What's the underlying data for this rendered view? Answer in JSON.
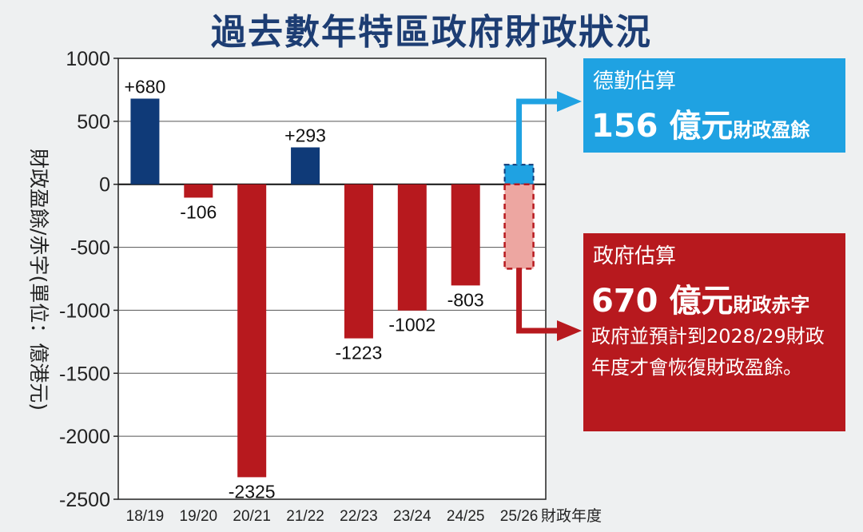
{
  "title": "過去數年特區政府財政狀況",
  "chart_data": {
    "type": "bar",
    "title": "過去數年特區政府財政狀況",
    "ylabel": "財政盈餘/赤字(單位：億港元)",
    "xlabel": "財政年度",
    "ylim": [
      -2500,
      1000
    ],
    "yticks": [
      1000,
      500,
      0,
      -500,
      -1000,
      -1500,
      -2000,
      -2500
    ],
    "categories": [
      "18/19",
      "19/20",
      "20/21",
      "21/22",
      "22/23",
      "23/24",
      "24/25",
      "25/26"
    ],
    "values": [
      680,
      -106,
      -2325,
      293,
      -1223,
      -1002,
      -803,
      null
    ],
    "data_labels": [
      "+680",
      "-106",
      "-2325",
      "+293",
      "-1223",
      "-1002",
      "-803",
      ""
    ],
    "estimates_2526": {
      "deloitte": 156,
      "government": -670
    },
    "grid": true,
    "colors": {
      "surplus": "#0f3a78",
      "deficit": "#b7191e",
      "deloitte": "#1fa2e2",
      "government_estimate": "#eda6a1"
    }
  },
  "callouts": {
    "deloitte": {
      "heading": "德勤估算",
      "amount": "156 億元",
      "suffix": "財政盈餘"
    },
    "government": {
      "heading": "政府估算",
      "amount": "670 億元",
      "suffix": "財政赤字",
      "note": "政府並預計到2028/29財政年度才會恢復財政盈餘。"
    }
  }
}
